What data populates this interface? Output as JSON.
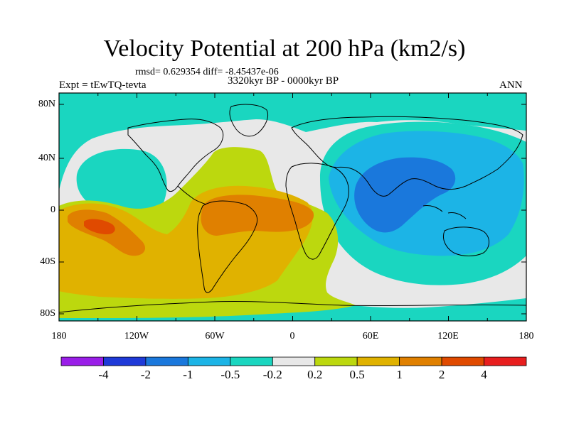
{
  "title": "Velocity Potential at 200 hPa (km2/s)",
  "stats": "rmsd= 0.629354 diff= -8.45437e-06",
  "experiment": "Expt = tEwTQ-tevta",
  "period": "3320kyr BP - 0000kyr BP",
  "season": "ANN",
  "lat_labels": [
    "80N",
    "40N",
    "0",
    "40S",
    "80S"
  ],
  "lon_labels": [
    "180",
    "120W",
    "60W",
    "0",
    "60E",
    "120E",
    "180"
  ],
  "colorbar": {
    "colors": [
      "#9a1ee8",
      "#1f3ad8",
      "#1a78dc",
      "#1cb4e6",
      "#1ad6c0",
      "#e8e8e8",
      "#bcd80e",
      "#e0b200",
      "#e08000",
      "#e04a00",
      "#e81e1e"
    ],
    "labels": [
      "-4",
      "-2",
      "-1",
      "-0.5",
      "-0.2",
      "0.2",
      "0.5",
      "1",
      "2",
      "4"
    ]
  },
  "palette": {
    "teal": "#1ad6c0",
    "cyan": "#1cb4e6",
    "blue": "#1a78dc",
    "gray": "#e8e8e8",
    "yellowgreen": "#bcd80e",
    "orange": "#e0b200",
    "darkorange": "#e08000",
    "red": "#e04a00"
  }
}
